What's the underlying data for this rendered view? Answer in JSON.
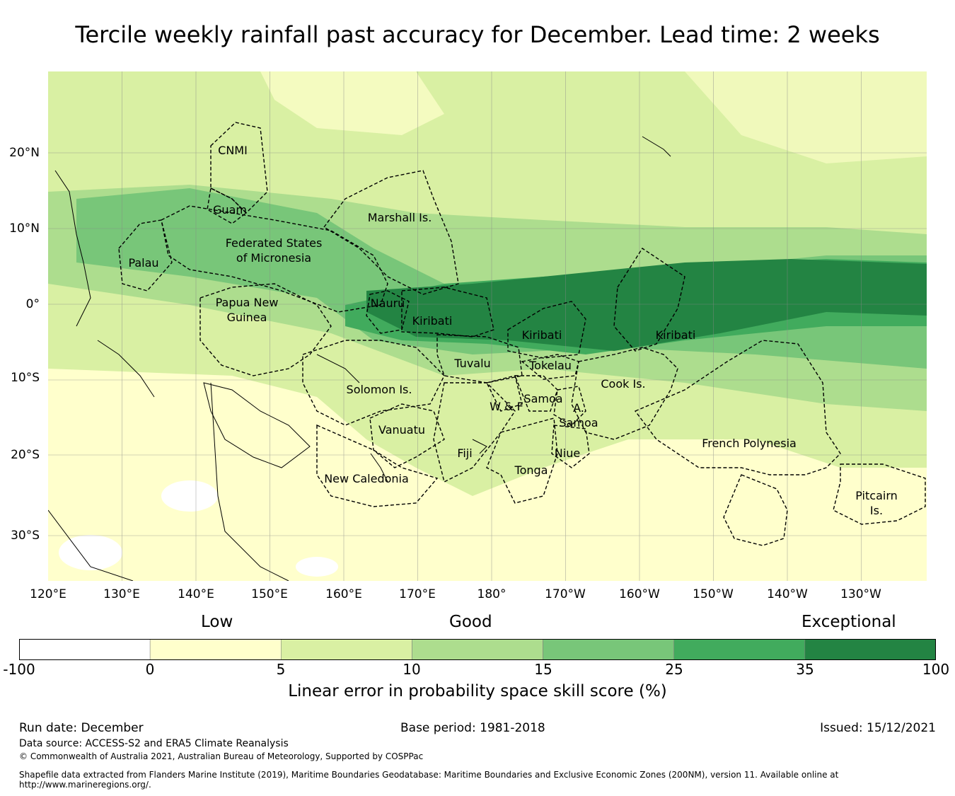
{
  "title": "Tercile weekly rainfall past accuracy for December. Lead time: 2 weeks",
  "map": {
    "longitude_labels": [
      "120°E",
      "130°E",
      "140°E",
      "150°E",
      "160°E",
      "170°E",
      "180°",
      "170°W",
      "160°W",
      "150°W",
      "140°W",
      "130°W"
    ],
    "latitude_labels": [
      "20°N",
      "10°N",
      "0°",
      "10°S",
      "20°S",
      "30°S"
    ],
    "region_labels": [
      "CNMI",
      "Guam",
      "Marshall Is.",
      "Federated States",
      "of Micronesia",
      "Palau",
      "Nauru",
      "Kiribati",
      "Papua New",
      "Guinea",
      "Kiribati",
      "Kiribati",
      "Tuvalu",
      "Tokelau",
      "Cook Is.",
      "Solomon Is.",
      "Samoa",
      "W & F",
      "A.",
      "Samoa",
      "Vanuatu",
      "Fiji",
      "Niue",
      "Tonga",
      "French Polynesia",
      "New Caledonia",
      "Pitcairn",
      "Is."
    ]
  },
  "colorbar": {
    "categories": [
      "Low",
      "Good",
      "Exceptional"
    ],
    "ticks": [
      "-100",
      "0",
      "5",
      "10",
      "15",
      "25",
      "35",
      "100"
    ],
    "colors": [
      "#ffffff",
      "#ffffcc",
      "#d9f0a3",
      "#addd8e",
      "#78c679",
      "#41ab5d",
      "#238443"
    ],
    "title": "Linear error in probability space skill score (%)"
  },
  "footer": {
    "run_date": "Run date: December",
    "base_period": "Base period: 1981-2018",
    "issued": "Issued: 15/12/2021",
    "data_source": "Data source: ACCESS-S2 and ERA5 Climate Reanalysis",
    "copyright": "© Commonwealth of Australia 2021, Australian Bureau of Meteorology, Supported by COSPPac",
    "shapefile_line1": "Shapefile data extracted from Flanders Marine Institute (2019), Maritime Boundaries Geodatabase: Maritime Boundaries and Exclusive Economic Zones (200NM), version 11. Available online at",
    "shapefile_line2": "http://www.marineregions.org/."
  }
}
